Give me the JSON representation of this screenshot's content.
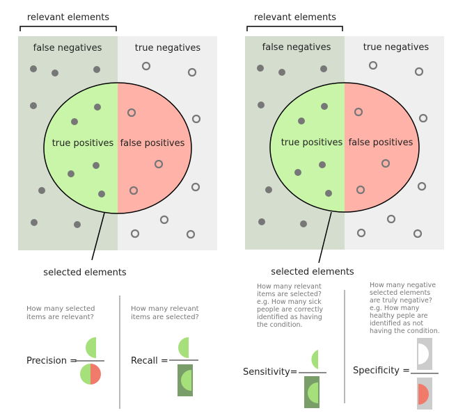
{
  "left_diagram": {
    "bracket_label": "relevant elements",
    "false_negatives": "false negatives",
    "true_negatives": "true negatives",
    "true_positives": "true positives",
    "false_positives": "false positives",
    "selected_label": "selected elements"
  },
  "right_diagram": {
    "bracket_label": "relevant elements",
    "false_negatives": "false negatives",
    "true_negatives": "true negatives",
    "true_positives": "true positives",
    "false_positives": "false positives",
    "selected_label": "selected elements"
  },
  "precision": {
    "question": [
      "How many selected",
      "items are relevant?"
    ],
    "label": "Precision ="
  },
  "recall": {
    "question": [
      "How many relevant",
      "items are selected?"
    ],
    "label": "Recall ="
  },
  "sensitivity": {
    "question": [
      "How many relevant",
      "items are selected?",
      "e.g. How many sick",
      "people are correctly",
      "identified as having",
      "the condition."
    ],
    "label": "Sensitivity="
  },
  "specificity": {
    "question": [
      "How many negative",
      "selected elements",
      "are truly negative?",
      "e.g. How many",
      "healthy peple are",
      "identified as not",
      "having the condition."
    ],
    "label": "Specificity ="
  },
  "colors": {
    "relevant_bg": "#d4ddce",
    "nonrelevant_bg": "#efefef",
    "true_positive": "#c8f5a8",
    "false_positive": "#ffb2a8",
    "dot": "#777777",
    "recall_denominator": "#7a9e6a",
    "specificity_denominator": "#cccccc",
    "half_green": "#a6e07a",
    "half_red": "#f07b6b"
  }
}
